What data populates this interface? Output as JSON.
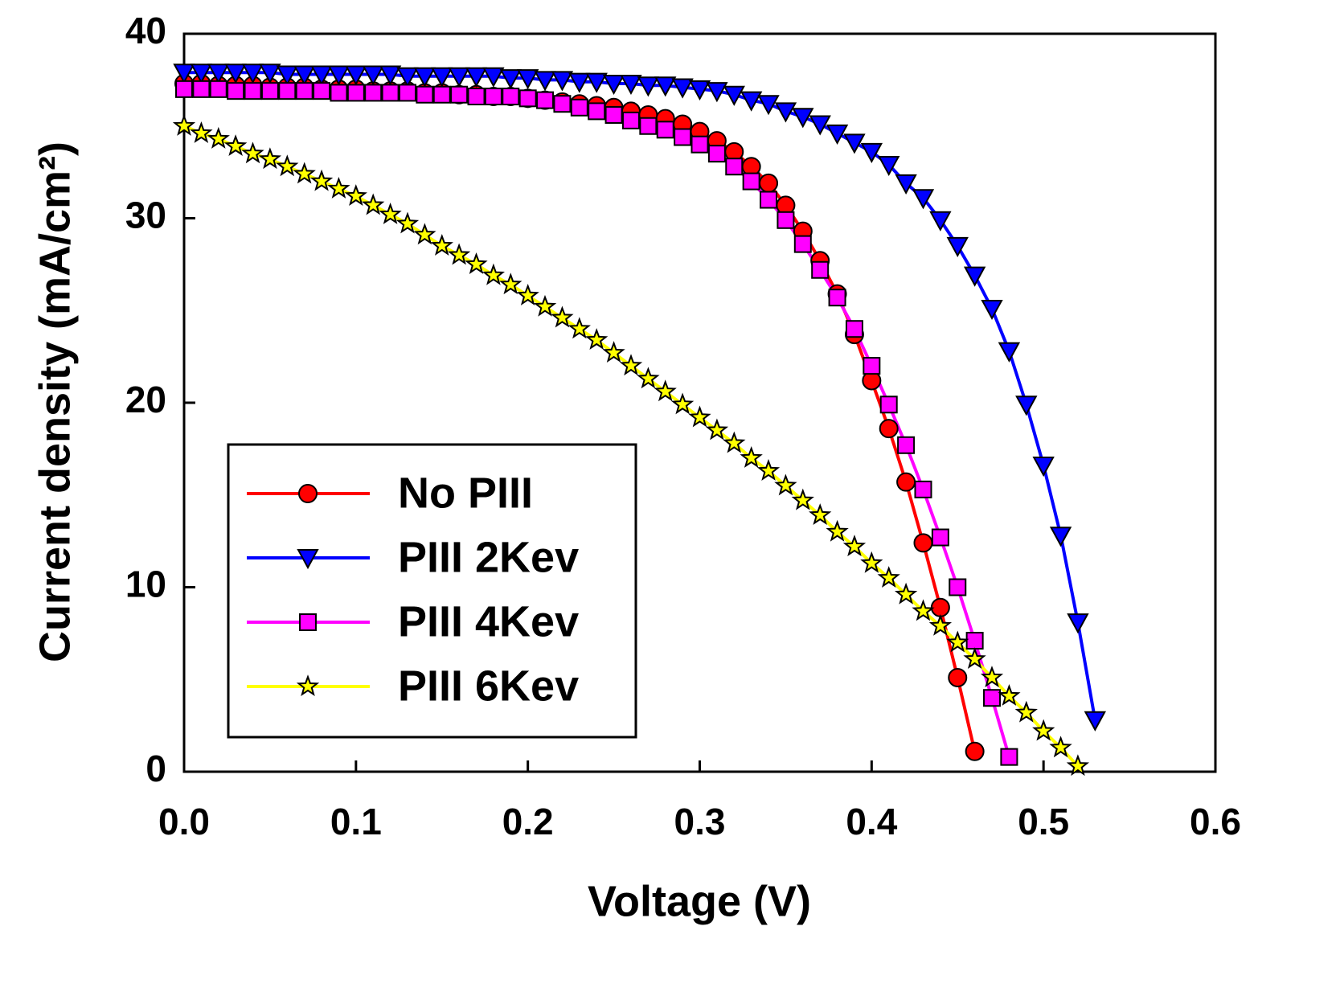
{
  "chart_data": {
    "type": "line",
    "xlabel": "Voltage (V)",
    "ylabel": "Current density (mA/cm²)",
    "xlim": [
      0,
      0.6
    ],
    "ylim": [
      0,
      40
    ],
    "xticks": [
      {
        "value": 0,
        "label": "0.0"
      },
      0.1,
      0.2,
      0.3,
      0.4,
      0.5,
      0.6
    ],
    "yticks": [
      0,
      10,
      20,
      30,
      40
    ],
    "legend": "lower left",
    "series": [
      {
        "name": "No PIII",
        "color": "#ff0000",
        "marker": "circle",
        "x": [
          0,
          0.01,
          0.02,
          0.03,
          0.04,
          0.05,
          0.06,
          0.07,
          0.08,
          0.09,
          0.1,
          0.11,
          0.12,
          0.13,
          0.14,
          0.15,
          0.16,
          0.17,
          0.18,
          0.19,
          0.2,
          0.21,
          0.22,
          0.23,
          0.24,
          0.25,
          0.26,
          0.27,
          0.28,
          0.29,
          0.3,
          0.31,
          0.32,
          0.33,
          0.34,
          0.35,
          0.36,
          0.37,
          0.38,
          0.39,
          0.4,
          0.41,
          0.42,
          0.43,
          0.44,
          0.45,
          0.46
        ],
        "values": [
          37.3,
          37.3,
          37.2,
          37.2,
          37.2,
          37.1,
          37.1,
          37.1,
          37.0,
          37.0,
          37.0,
          36.9,
          36.9,
          36.9,
          36.8,
          36.8,
          36.7,
          36.7,
          36.6,
          36.6,
          36.5,
          36.4,
          36.3,
          36.2,
          36.1,
          36.0,
          35.8,
          35.6,
          35.4,
          35.1,
          34.7,
          34.2,
          33.6,
          32.8,
          31.9,
          30.7,
          29.3,
          27.7,
          25.9,
          23.7,
          21.2,
          18.6,
          15.7,
          12.4,
          8.9,
          5.1,
          1.1
        ]
      },
      {
        "name": "PIII 2Kev",
        "color": "#0000ff",
        "marker": "triangle-down",
        "x": [
          0,
          0.01,
          0.02,
          0.03,
          0.04,
          0.05,
          0.06,
          0.07,
          0.08,
          0.09,
          0.1,
          0.11,
          0.12,
          0.13,
          0.14,
          0.15,
          0.16,
          0.17,
          0.18,
          0.19,
          0.2,
          0.21,
          0.22,
          0.23,
          0.24,
          0.25,
          0.26,
          0.27,
          0.28,
          0.29,
          0.3,
          0.31,
          0.32,
          0.33,
          0.34,
          0.35,
          0.36,
          0.37,
          0.38,
          0.39,
          0.4,
          0.41,
          0.42,
          0.43,
          0.44,
          0.45,
          0.46,
          0.47,
          0.48,
          0.49,
          0.5,
          0.51,
          0.52,
          0.53
        ],
        "values": [
          37.9,
          37.9,
          37.9,
          37.9,
          37.9,
          37.9,
          37.8,
          37.8,
          37.8,
          37.8,
          37.8,
          37.8,
          37.8,
          37.7,
          37.7,
          37.7,
          37.7,
          37.7,
          37.7,
          37.6,
          37.6,
          37.5,
          37.5,
          37.4,
          37.4,
          37.3,
          37.3,
          37.2,
          37.2,
          37.1,
          37.0,
          36.9,
          36.7,
          36.4,
          36.2,
          35.8,
          35.5,
          35.1,
          34.6,
          34.1,
          33.6,
          32.9,
          31.9,
          31.1,
          29.9,
          28.5,
          26.9,
          25.1,
          22.8,
          19.9,
          16.6,
          12.8,
          8.1,
          2.8
        ]
      },
      {
        "name": "PIII 4Kev",
        "color": "#ff00ff",
        "marker": "square",
        "x": [
          0,
          0.01,
          0.02,
          0.03,
          0.04,
          0.05,
          0.06,
          0.07,
          0.08,
          0.09,
          0.1,
          0.11,
          0.12,
          0.13,
          0.14,
          0.15,
          0.16,
          0.17,
          0.18,
          0.19,
          0.2,
          0.21,
          0.22,
          0.23,
          0.24,
          0.25,
          0.26,
          0.27,
          0.28,
          0.29,
          0.3,
          0.31,
          0.32,
          0.33,
          0.34,
          0.35,
          0.36,
          0.37,
          0.38,
          0.39,
          0.4,
          0.41,
          0.42,
          0.43,
          0.44,
          0.45,
          0.46,
          0.47,
          0.48
        ],
        "values": [
          37.0,
          37.0,
          37.0,
          36.9,
          36.9,
          36.9,
          36.9,
          36.9,
          36.9,
          36.8,
          36.8,
          36.8,
          36.8,
          36.8,
          36.7,
          36.7,
          36.7,
          36.6,
          36.6,
          36.6,
          36.5,
          36.4,
          36.2,
          36.0,
          35.8,
          35.6,
          35.3,
          35.0,
          34.8,
          34.4,
          34.0,
          33.5,
          32.8,
          32.0,
          31.0,
          29.9,
          28.6,
          27.2,
          25.7,
          24.0,
          22.0,
          19.9,
          17.7,
          15.3,
          12.7,
          10.0,
          7.1,
          4.0,
          0.8
        ]
      },
      {
        "name": "PIII 6Kev",
        "color": "#ffff00",
        "marker": "star",
        "x": [
          0,
          0.01,
          0.02,
          0.03,
          0.04,
          0.05,
          0.06,
          0.07,
          0.08,
          0.09,
          0.1,
          0.11,
          0.12,
          0.13,
          0.14,
          0.15,
          0.16,
          0.17,
          0.18,
          0.19,
          0.2,
          0.21,
          0.22,
          0.23,
          0.24,
          0.25,
          0.26,
          0.27,
          0.28,
          0.29,
          0.3,
          0.31,
          0.32,
          0.33,
          0.34,
          0.35,
          0.36,
          0.37,
          0.38,
          0.39,
          0.4,
          0.41,
          0.42,
          0.43,
          0.44,
          0.45,
          0.46,
          0.47,
          0.48,
          0.49,
          0.5,
          0.51,
          0.52
        ],
        "values": [
          35.0,
          34.6,
          34.3,
          33.9,
          33.5,
          33.2,
          32.8,
          32.4,
          32.0,
          31.6,
          31.2,
          30.7,
          30.2,
          29.7,
          29.1,
          28.5,
          28.0,
          27.5,
          26.9,
          26.4,
          25.8,
          25.2,
          24.6,
          24.0,
          23.4,
          22.7,
          22.0,
          21.3,
          20.6,
          19.9,
          19.2,
          18.5,
          17.8,
          17.0,
          16.3,
          15.5,
          14.7,
          13.9,
          13.0,
          12.2,
          11.3,
          10.5,
          9.6,
          8.7,
          7.9,
          7.0,
          6.1,
          5.1,
          4.1,
          3.2,
          2.2,
          1.3,
          0.3
        ]
      }
    ]
  }
}
